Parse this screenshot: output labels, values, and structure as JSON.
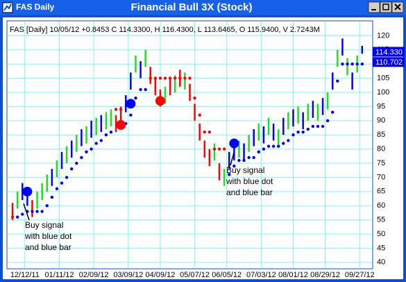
{
  "window_title": "FAS Daily",
  "chart_data": {
    "type": "bars",
    "title": "Financial Bull 3X (Stock)",
    "info": "FAS [Daily] 10/05/12 +0.8453 C 114.3300, H 116.4300, L 113.6465, O 115.9400, V 2.7243M",
    "xlim": [
      -1,
      73
    ],
    "xticks": [
      {
        "value": 2.5,
        "label": "12/12/11"
      },
      {
        "value": 9.5,
        "label": "01/11/12"
      },
      {
        "value": 16.5,
        "label": "02/09/12"
      },
      {
        "value": 23.5,
        "label": "03/09/12"
      },
      {
        "value": 30,
        "label": "04/09/12"
      },
      {
        "value": 37,
        "label": "05/07/12"
      },
      {
        "value": 43.5,
        "label": "06/05/12"
      },
      {
        "value": 50.5,
        "label": "07/03/12"
      },
      {
        "value": 57,
        "label": "08/01/12"
      },
      {
        "value": 63.5,
        "label": "08/29/12"
      },
      {
        "value": 70.5,
        "label": "09/27/12"
      }
    ],
    "ylim": [
      38,
      125
    ],
    "yticks": [
      40,
      45,
      50,
      55,
      60,
      65,
      70,
      75,
      80,
      85,
      90,
      95,
      100,
      105,
      110,
      115,
      120
    ],
    "grid": true,
    "grid_color": "#7ff5f5",
    "high": [
      61,
      65,
      68,
      66,
      62,
      65,
      68,
      71,
      73,
      76,
      79,
      81,
      83,
      85,
      87,
      88,
      90,
      91,
      92,
      93,
      94,
      92,
      95,
      99,
      107,
      113,
      111,
      115,
      109,
      105,
      101,
      102,
      105,
      106,
      108,
      107,
      103,
      96,
      89,
      83,
      80,
      82,
      75,
      73,
      79,
      82,
      83,
      82,
      85,
      87,
      89,
      88,
      91,
      89,
      87,
      91,
      93,
      94,
      95,
      93,
      96,
      97,
      96,
      98,
      100,
      107,
      115,
      119,
      112,
      107,
      113,
      116.43
    ],
    "low": [
      55,
      59,
      62,
      60,
      56,
      59,
      62,
      65,
      67,
      70,
      73,
      75,
      77,
      79,
      81,
      82,
      84,
      85,
      86,
      87,
      88,
      86,
      89,
      93,
      101,
      107,
      105,
      109,
      103,
      99,
      95,
      96,
      99,
      100,
      102,
      101,
      97,
      90,
      83,
      77,
      74,
      76,
      69,
      67,
      73,
      76,
      77,
      76,
      79,
      81,
      83,
      82,
      85,
      83,
      81,
      85,
      87,
      88,
      89,
      87,
      90,
      91,
      90,
      92,
      94,
      101,
      109,
      113,
      106,
      101,
      107,
      113.6465
    ],
    "bar_colors": [
      "#ff0000",
      "#22dd22",
      "#0000ff",
      "#0000ff",
      "#ff0000",
      "#22dd22",
      "#22dd22",
      "#22dd22",
      "#0000ff",
      "#22dd22",
      "#0000ff",
      "#22dd22",
      "#0000ff",
      "#22dd22",
      "#0000ff",
      "#22dd22",
      "#0000ff",
      "#22dd22",
      "#0000ff",
      "#22dd22",
      "#22dd22",
      "#ff0000",
      "#ff0000",
      "#0000ff",
      "#0000ff",
      "#22dd22",
      "#0000ff",
      "#22dd22",
      "#ff0000",
      "#ff0000",
      "#ff0000",
      "#22dd22",
      "#ff0000",
      "#22dd22",
      "#ff0000",
      "#22dd22",
      "#ff0000",
      "#ff0000",
      "#ff0000",
      "#ff0000",
      "#ff0000",
      "#22dd22",
      "#ff0000",
      "#22dd22",
      "#0000ff",
      "#0000ff",
      "#22dd22",
      "#0000ff",
      "#22dd22",
      "#0000ff",
      "#22dd22",
      "#0000ff",
      "#22dd22",
      "#0000ff",
      "#22dd22",
      "#0000ff",
      "#22dd22",
      "#0000ff",
      "#22dd22",
      "#0000ff",
      "#22dd22",
      "#0000ff",
      "#22dd22",
      "#0000ff",
      "#22dd22",
      "#0000ff",
      "#22dd22",
      "#0000ff",
      "#22dd22",
      "#0000ff",
      "#22dd22",
      "#0000ff"
    ],
    "stops": [
      {
        "color": "#0000ff",
        "values": [
          null,
          56,
          57,
          58,
          58,
          58,
          58,
          60,
          63,
          66,
          68,
          70,
          73,
          75,
          77,
          79,
          80,
          82,
          83,
          85,
          86,
          null,
          null,
          89,
          92,
          98,
          101,
          101,
          null,
          null,
          null,
          null,
          null,
          null,
          null,
          null,
          null,
          null,
          null,
          null,
          null,
          null,
          null,
          null,
          71,
          74,
          76,
          76,
          77,
          77,
          79,
          80,
          81,
          81,
          81,
          82,
          83,
          85,
          86,
          86,
          87,
          88,
          88,
          88,
          90,
          93,
          104,
          110,
          110,
          110,
          110,
          110
        ]
      },
      {
        "color": "#ff0000",
        "values": [
          56,
          null,
          null,
          null,
          null,
          null,
          null,
          null,
          null,
          null,
          null,
          null,
          null,
          null,
          null,
          null,
          null,
          null,
          null,
          null,
          null,
          94,
          94,
          null,
          null,
          null,
          null,
          null,
          105,
          105,
          105,
          105,
          105,
          105,
          105,
          105,
          105,
          98,
          92,
          86,
          86,
          80,
          80,
          80,
          null,
          null,
          null,
          null,
          null,
          null,
          null,
          null,
          null,
          null,
          null,
          null,
          null,
          null,
          null,
          null,
          null,
          null,
          null,
          null,
          null,
          null,
          null,
          null,
          null,
          null,
          null,
          null
        ]
      }
    ],
    "signals": [
      {
        "x": 3,
        "value": 65,
        "color": "#0000ff"
      },
      {
        "x": 22,
        "value": 88.5,
        "color": "#ff0000"
      },
      {
        "x": 24,
        "value": 96,
        "color": "#0000ff"
      },
      {
        "x": 30,
        "value": 97,
        "color": "#ff0000"
      },
      {
        "x": 45,
        "value": 82,
        "color": "#0000ff"
      }
    ],
    "annotations": [
      [
        "Buy signal",
        "with blue dot",
        "and blue bar"
      ],
      [
        "Buy signal",
        "with blue dot",
        "and blue bar"
      ]
    ],
    "price_tags": [
      {
        "value": 114.33,
        "label": "114.330"
      },
      {
        "value": 110.702,
        "label": "110.702"
      }
    ]
  }
}
